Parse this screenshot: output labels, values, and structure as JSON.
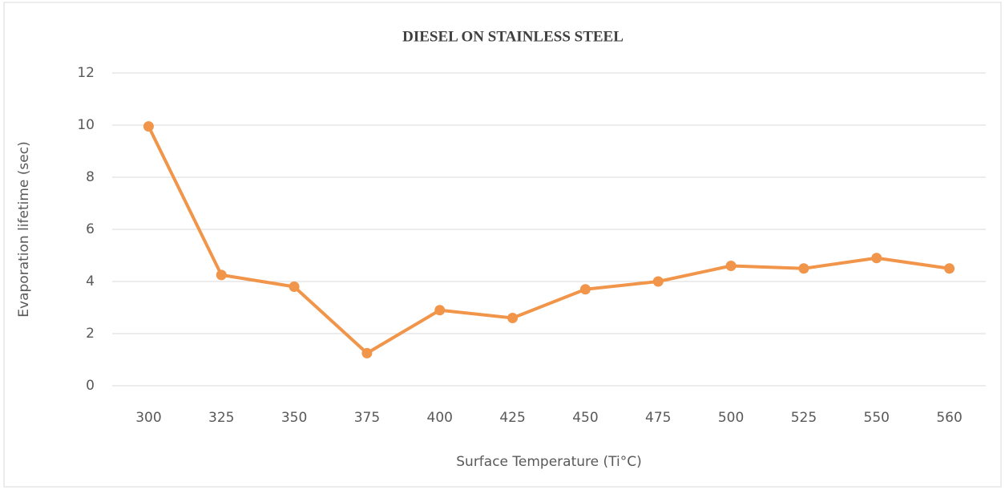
{
  "chart_data": {
    "type": "line",
    "title": "DIESEL ON STAINLESS STEEL",
    "x_label": "Surface Temperature (Ti°C)",
    "y_label": "Evaporation lifetime (sec)",
    "categories": [
      "300",
      "325",
      "350",
      "375",
      "400",
      "425",
      "450",
      "475",
      "500",
      "525",
      "550",
      "560"
    ],
    "series": [
      {
        "name": "Diesel",
        "color": "#f0954a",
        "values": [
          9.95,
          4.25,
          3.8,
          1.25,
          2.9,
          2.6,
          3.7,
          4.0,
          4.6,
          4.5,
          4.9,
          4.5
        ]
      }
    ],
    "ylim": [
      0,
      12
    ],
    "yticks": [
      0,
      2,
      4,
      6,
      8,
      10,
      12
    ],
    "grid": true
  }
}
